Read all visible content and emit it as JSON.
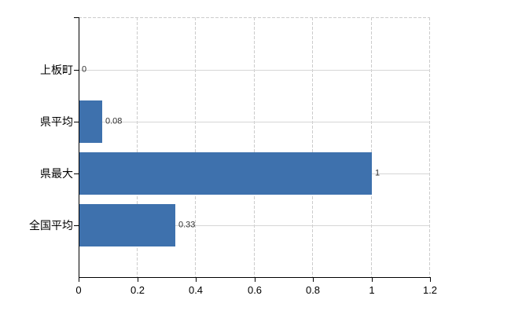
{
  "chart_data": {
    "type": "bar",
    "orientation": "horizontal",
    "title": "",
    "categories": [
      "上板町",
      "県平均",
      "県最大",
      "全国平均"
    ],
    "values": [
      0,
      0.08,
      1,
      0.33
    ],
    "value_labels": [
      "0",
      "0.08",
      "1",
      "0.33"
    ],
    "x_ticks": [
      0,
      0.2,
      0.4,
      0.6,
      0.8,
      1,
      1.2
    ],
    "x_tick_labels": [
      "0",
      "0.2",
      "0.4",
      "0.6",
      "0.8",
      "1",
      "1.2"
    ],
    "xlim": [
      0,
      1.2
    ],
    "grid": true,
    "legend": false,
    "colors": {
      "bar": "#3e71ad",
      "grid_solid": "#d6d6d6",
      "grid_dashed": "#cccccc",
      "axis": "#000000",
      "value_label": "#303030",
      "tick_label": "#000000",
      "background": "#ffffff"
    }
  }
}
